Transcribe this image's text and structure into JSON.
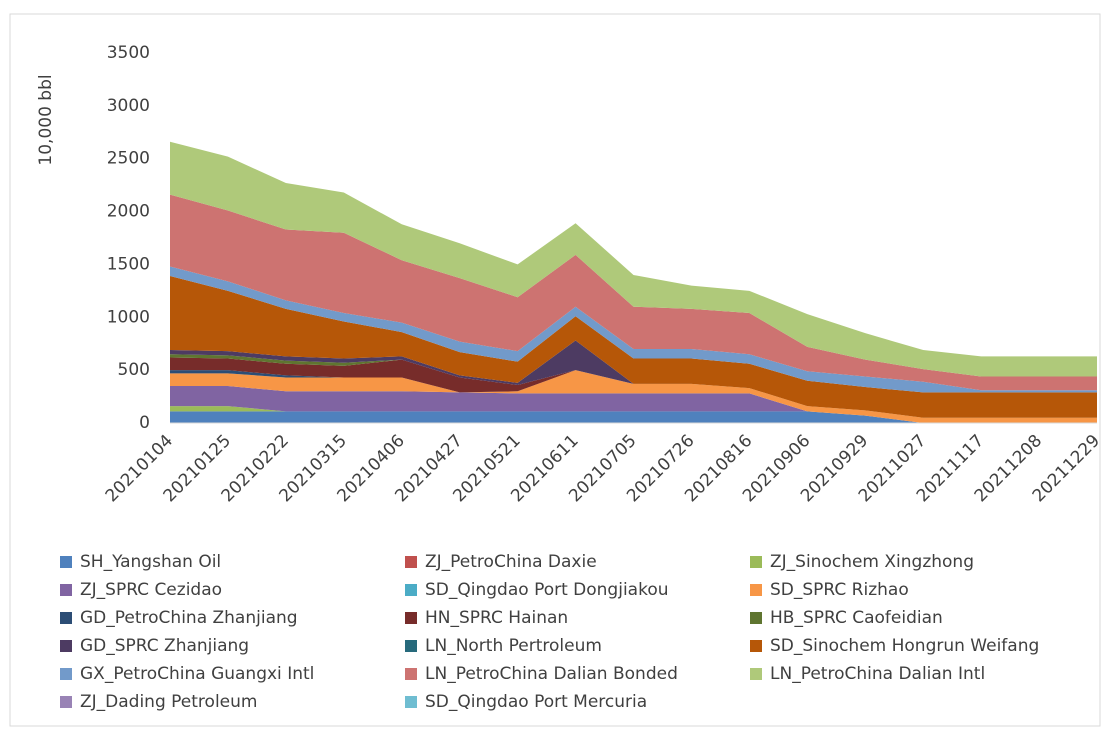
{
  "chart_data": {
    "type": "stacked_area",
    "ylabel": "10,000 bbl",
    "categories": [
      "20210104",
      "20210125",
      "20210222",
      "20210315",
      "20210406",
      "20210427",
      "20210521",
      "20210611",
      "20210705",
      "20210726",
      "20210816",
      "20210906",
      "20210929",
      "20211027",
      "20211117",
      "20211208",
      "20211229"
    ],
    "ylim": [
      0,
      3500
    ],
    "yticks": [
      0,
      500,
      1000,
      1500,
      2000,
      2500,
      3000,
      3500
    ],
    "grid": false,
    "legend": "bottom",
    "series": [
      {
        "name": "SH_Yangshan Oil",
        "color": "#4F81BD",
        "values": [
          110,
          110,
          110,
          110,
          110,
          110,
          110,
          110,
          110,
          110,
          110,
          110,
          70,
          0,
          0,
          0,
          0
        ]
      },
      {
        "name": "ZJ_PetroChina Daxie",
        "color": "#C0504D",
        "values": [
          0,
          0,
          0,
          0,
          0,
          0,
          0,
          0,
          0,
          0,
          0,
          0,
          0,
          0,
          0,
          0,
          0
        ]
      },
      {
        "name": "ZJ_Sinochem Xingzhong",
        "color": "#9BBB59",
        "values": [
          50,
          50,
          0,
          0,
          0,
          0,
          0,
          0,
          0,
          0,
          0,
          0,
          0,
          0,
          0,
          0,
          0
        ]
      },
      {
        "name": "ZJ_SPRC Cezidao",
        "color": "#8064A2",
        "values": [
          190,
          190,
          190,
          190,
          190,
          180,
          170,
          170,
          170,
          170,
          170,
          0,
          0,
          0,
          0,
          0,
          0
        ]
      },
      {
        "name": "SD_Qingdao Port Dongjiakou",
        "color": "#4BACC6",
        "values": [
          0,
          0,
          0,
          0,
          0,
          0,
          0,
          0,
          0,
          0,
          0,
          0,
          0,
          0,
          0,
          0,
          0
        ]
      },
      {
        "name": "SD_SPRC Rizhao",
        "color": "#F79646",
        "values": [
          120,
          120,
          130,
          130,
          130,
          0,
          20,
          220,
          90,
          90,
          50,
          50,
          50,
          50,
          50,
          50,
          50
        ]
      },
      {
        "name": "GD_PetroChina Zhanjiang",
        "color": "#2C4D75",
        "values": [
          30,
          30,
          20,
          0,
          0,
          0,
          0,
          0,
          0,
          0,
          0,
          0,
          0,
          0,
          0,
          0,
          0
        ]
      },
      {
        "name": "HN_SPRC Hainan",
        "color": "#772C2A",
        "values": [
          120,
          110,
          110,
          110,
          170,
          140,
          60,
          0,
          0,
          0,
          0,
          0,
          0,
          0,
          0,
          0,
          0
        ]
      },
      {
        "name": "HB_SPRC Caofeidian",
        "color": "#5F7530",
        "values": [
          30,
          30,
          30,
          30,
          0,
          0,
          0,
          0,
          0,
          0,
          0,
          0,
          0,
          0,
          0,
          0,
          0
        ]
      },
      {
        "name": "GD_SPRC Zhanjiang",
        "color": "#4D3B62",
        "values": [
          40,
          40,
          40,
          40,
          30,
          20,
          20,
          280,
          0,
          0,
          0,
          0,
          0,
          0,
          0,
          0,
          0
        ]
      },
      {
        "name": "LN_North Pertroleum",
        "color": "#276A7C",
        "values": [
          0,
          0,
          0,
          0,
          0,
          0,
          0,
          0,
          0,
          0,
          0,
          0,
          0,
          0,
          0,
          0,
          0
        ]
      },
      {
        "name": "SD_Sinochem Hongrun Weifang",
        "color": "#B65708",
        "values": [
          700,
          570,
          450,
          350,
          230,
          220,
          200,
          230,
          240,
          240,
          230,
          240,
          220,
          240,
          240,
          240,
          240
        ]
      },
      {
        "name": "GX_PetroChina Guangxi Intl",
        "color": "#729ACA",
        "values": [
          90,
          90,
          80,
          80,
          90,
          100,
          100,
          90,
          90,
          90,
          90,
          90,
          100,
          100,
          20,
          20,
          20
        ]
      },
      {
        "name": "LN_PetroChina Dalian Bonded",
        "color": "#CD7371",
        "values": [
          680,
          670,
          670,
          760,
          590,
          600,
          510,
          490,
          400,
          380,
          390,
          230,
          160,
          120,
          130,
          130,
          130
        ]
      },
      {
        "name": "LN_PetroChina Dalian Intl",
        "color": "#AFC97A",
        "values": [
          500,
          510,
          440,
          380,
          340,
          330,
          310,
          300,
          300,
          220,
          210,
          310,
          250,
          180,
          190,
          190,
          190
        ]
      },
      {
        "name": "ZJ_Dading Petroleum",
        "color": "#9983B5",
        "values": [
          0,
          0,
          0,
          0,
          0,
          0,
          0,
          0,
          0,
          0,
          0,
          0,
          0,
          0,
          0,
          0,
          0
        ]
      },
      {
        "name": "SD_Qingdao Port Mercuria",
        "color": "#6FBDD1",
        "values": [
          0,
          0,
          0,
          0,
          0,
          0,
          0,
          0,
          0,
          0,
          0,
          0,
          0,
          0,
          0,
          0,
          0
        ]
      }
    ]
  }
}
